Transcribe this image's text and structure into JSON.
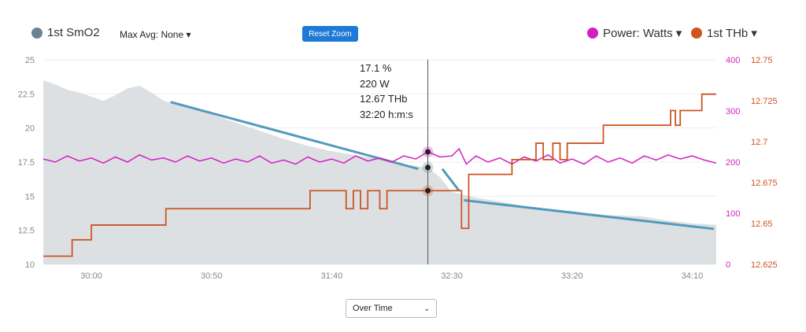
{
  "header": {
    "legend_smo2": "1st SmO2",
    "max_avg": "Max Avg: None ▾",
    "reset_zoom": "Reset Zoom",
    "legend_power": "Power: Watts ▾",
    "legend_thb": "1st THb ▾"
  },
  "footer": {
    "mode_select": "Over Time"
  },
  "tooltip": {
    "smo2": "17.1 %",
    "power": "220 W",
    "thb": "12.67 THb",
    "time": "32:20 h:m:s"
  },
  "colors": {
    "smo2": "#6e8191",
    "smo2_area": "#dde0e3",
    "power": "#d21fc3",
    "thb": "#cc5522",
    "trend": "#29a8e0"
  },
  "chart_data": {
    "type": "line",
    "x_ticks": [
      "30:00",
      "30:50",
      "31:40",
      "32:30",
      "33:20",
      "34:10"
    ],
    "xlim": [
      "29:40",
      "34:20"
    ],
    "y_left": {
      "ticks": [
        "10",
        "12.5",
        "15",
        "17.5",
        "20",
        "22.5",
        "25"
      ],
      "range": [
        10,
        25
      ]
    },
    "y_power": {
      "ticks": [
        "0",
        "100",
        "200",
        "300",
        "400"
      ],
      "range": [
        0,
        400
      ]
    },
    "y_thb": {
      "ticks": [
        "12.625",
        "12.65",
        "12.675",
        "12.7",
        "12.725",
        "12.75"
      ],
      "range": [
        12.625,
        12.75
      ]
    },
    "cursor_time": "32:20",
    "series": [
      {
        "name": "1st SmO2",
        "type": "area",
        "points": [
          [
            "29:40",
            23.5
          ],
          [
            "29:45",
            23.2
          ],
          [
            "29:50",
            22.8
          ],
          [
            "29:55",
            22.6
          ],
          [
            "30:00",
            22.3
          ],
          [
            "30:05",
            22.0
          ],
          [
            "30:10",
            22.4
          ],
          [
            "30:15",
            22.9
          ],
          [
            "30:20",
            23.1
          ],
          [
            "30:25",
            22.6
          ],
          [
            "30:30",
            22.0
          ],
          [
            "30:40",
            21.5
          ],
          [
            "30:50",
            21.0
          ],
          [
            "31:00",
            20.4
          ],
          [
            "31:10",
            19.8
          ],
          [
            "31:20",
            19.2
          ],
          [
            "31:30",
            18.7
          ],
          [
            "31:40",
            18.3
          ],
          [
            "31:50",
            18.0
          ],
          [
            "32:00",
            17.7
          ],
          [
            "32:10",
            17.3
          ],
          [
            "32:20",
            17.1
          ],
          [
            "32:25",
            16.4
          ],
          [
            "32:30",
            15.3
          ],
          [
            "32:40",
            14.9
          ],
          [
            "32:50",
            14.6
          ],
          [
            "33:00",
            14.3
          ],
          [
            "33:10",
            14.0
          ],
          [
            "33:20",
            13.9
          ],
          [
            "33:30",
            13.6
          ],
          [
            "33:40",
            13.6
          ],
          [
            "33:50",
            13.5
          ],
          [
            "34:00",
            13.2
          ],
          [
            "34:10",
            13.0
          ],
          [
            "34:20",
            12.9
          ]
        ]
      },
      {
        "name": "Power: Watts",
        "axis": "power",
        "points": [
          [
            "29:40",
            206
          ],
          [
            "29:45",
            200
          ],
          [
            "29:50",
            212
          ],
          [
            "29:55",
            202
          ],
          [
            "30:00",
            208
          ],
          [
            "30:05",
            198
          ],
          [
            "30:10",
            210
          ],
          [
            "30:15",
            200
          ],
          [
            "30:20",
            214
          ],
          [
            "30:25",
            204
          ],
          [
            "30:30",
            208
          ],
          [
            "30:35",
            200
          ],
          [
            "30:40",
            212
          ],
          [
            "30:45",
            202
          ],
          [
            "30:50",
            208
          ],
          [
            "30:55",
            198
          ],
          [
            "31:00",
            206
          ],
          [
            "31:05",
            200
          ],
          [
            "31:10",
            212
          ],
          [
            "31:15",
            198
          ],
          [
            "31:20",
            204
          ],
          [
            "31:25",
            196
          ],
          [
            "31:30",
            210
          ],
          [
            "31:35",
            200
          ],
          [
            "31:40",
            206
          ],
          [
            "31:45",
            198
          ],
          [
            "31:50",
            212
          ],
          [
            "31:55",
            202
          ],
          [
            "32:00",
            208
          ],
          [
            "32:05",
            200
          ],
          [
            "32:10",
            212
          ],
          [
            "32:15",
            206
          ],
          [
            "32:20",
            220
          ],
          [
            "32:25",
            210
          ],
          [
            "32:30",
            212
          ],
          [
            "32:33",
            226
          ],
          [
            "32:36",
            196
          ],
          [
            "32:40",
            212
          ],
          [
            "32:45",
            200
          ],
          [
            "32:50",
            208
          ],
          [
            "32:55",
            196
          ],
          [
            "33:00",
            210
          ],
          [
            "33:05",
            202
          ],
          [
            "33:10",
            214
          ],
          [
            "33:15",
            198
          ],
          [
            "33:20",
            206
          ],
          [
            "33:25",
            196
          ],
          [
            "33:30",
            212
          ],
          [
            "33:35",
            200
          ],
          [
            "33:40",
            208
          ],
          [
            "33:45",
            198
          ],
          [
            "33:50",
            212
          ],
          [
            "33:55",
            204
          ],
          [
            "34:00",
            214
          ],
          [
            "34:05",
            206
          ],
          [
            "34:10",
            212
          ],
          [
            "34:15",
            204
          ],
          [
            "34:20",
            198
          ]
        ]
      },
      {
        "name": "1st THb",
        "axis": "thb",
        "step": true,
        "points": [
          [
            "29:40",
            12.63
          ],
          [
            "29:52",
            12.64
          ],
          [
            "30:00",
            12.649
          ],
          [
            "30:31",
            12.659
          ],
          [
            "31:31",
            12.67
          ],
          [
            "31:46",
            12.659
          ],
          [
            "31:49",
            12.67
          ],
          [
            "31:52",
            12.659
          ],
          [
            "31:55",
            12.67
          ],
          [
            "32:00",
            12.659
          ],
          [
            "32:03",
            12.67
          ],
          [
            "32:34",
            12.647
          ],
          [
            "32:37",
            12.68
          ],
          [
            "32:55",
            12.689
          ],
          [
            "33:05",
            12.699
          ],
          [
            "33:08",
            12.689
          ],
          [
            "33:12",
            12.699
          ],
          [
            "33:15",
            12.689
          ],
          [
            "33:18",
            12.699
          ],
          [
            "33:33",
            12.71
          ],
          [
            "34:01",
            12.719
          ],
          [
            "34:03",
            12.71
          ],
          [
            "34:05",
            12.719
          ],
          [
            "34:14",
            12.729
          ],
          [
            "34:20",
            12.729
          ]
        ]
      }
    ],
    "trend_lines": [
      [
        [
          "30:33",
          21.9
        ],
        [
          "32:16",
          17.0
        ]
      ],
      [
        [
          "32:26",
          17.0
        ],
        [
          "32:33",
          15.4
        ]
      ],
      [
        [
          "32:35",
          14.7
        ],
        [
          "34:19",
          12.6
        ]
      ]
    ]
  }
}
